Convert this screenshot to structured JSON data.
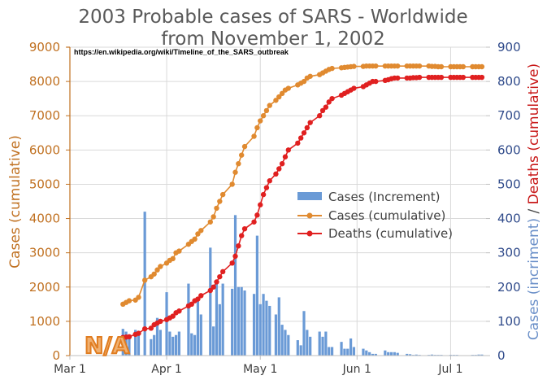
{
  "chart_data": {
    "type": "bar+line",
    "title_line1": "2003 Probable cases of SARS - Worldwide",
    "title_line2": "from November 1, 2002",
    "source": "https://en.wikipedia.org/wiki/Timeline_of_the_SARS_outbreak",
    "ylabel_left": "Cases (cumulative)",
    "ylabel_right_part1": "Cases (incriment)",
    "ylabel_right_sep": " / ",
    "ylabel_right_part2": "Deaths (cumulative)",
    "ylim_left": [
      0,
      9000
    ],
    "ylim_right": [
      0,
      900
    ],
    "left_ticks": [
      "0",
      "1000",
      "2000",
      "3000",
      "4000",
      "5000",
      "6000",
      "7000",
      "8000",
      "9000"
    ],
    "right_ticks": [
      "0",
      "100",
      "200",
      "300",
      "400",
      "500",
      "600",
      "700",
      "800",
      "900"
    ],
    "x_ticks": [
      {
        "label": "Mar 1",
        "day": 0
      },
      {
        "label": "Apr 1",
        "day": 31
      },
      {
        "label": "May 1",
        "day": 61
      },
      {
        "label": "Jun 1",
        "day": 92
      },
      {
        "label": "Jul 1",
        "day": 122
      }
    ],
    "na_label": "N/A",
    "legend": {
      "placement": "center-right",
      "items": [
        {
          "label": "Cases (Increment)",
          "color": "#6a9ad6"
        },
        {
          "label": "Cases (cumulative)",
          "color": "#e08a30"
        },
        {
          "label": "Deaths (cumulative)",
          "color": "#e02020"
        }
      ]
    },
    "colors": {
      "increment": "#6a9ad6",
      "cases": "#e08a30",
      "deaths": "#e02020",
      "grid": "#d9d9d9"
    },
    "days": [
      17,
      18,
      19,
      21,
      22,
      24,
      26,
      27,
      28,
      29,
      31,
      32,
      33,
      34,
      35,
      38,
      39,
      40,
      41,
      42,
      45,
      46,
      47,
      48,
      49,
      52,
      53,
      54,
      55,
      56,
      59,
      60,
      61,
      62,
      63,
      64,
      66,
      67,
      68,
      69,
      70,
      73,
      74,
      75,
      76,
      77,
      80,
      81,
      82,
      83,
      84,
      87,
      88,
      89,
      90,
      91,
      94,
      95,
      96,
      97,
      98,
      101,
      102,
      103,
      104,
      105,
      108,
      109,
      110,
      111,
      112,
      115,
      116,
      117,
      118,
      119,
      122,
      123,
      124,
      125,
      126,
      129,
      130,
      131,
      132
    ],
    "increment": [
      78,
      70,
      50,
      75,
      71,
      420,
      48,
      60,
      110,
      75,
      185,
      70,
      55,
      60,
      70,
      210,
      65,
      60,
      160,
      120,
      315,
      85,
      215,
      150,
      210,
      195,
      410,
      200,
      200,
      190,
      180,
      350,
      150,
      180,
      160,
      145,
      120,
      170,
      90,
      75,
      60,
      45,
      30,
      130,
      75,
      55,
      70,
      55,
      70,
      25,
      25,
      40,
      20,
      20,
      50,
      25,
      20,
      15,
      10,
      5,
      5,
      15,
      10,
      10,
      10,
      8,
      5,
      4,
      2,
      3,
      2,
      2,
      3,
      2,
      2,
      2,
      2,
      2,
      2,
      1,
      1,
      2,
      2,
      3,
      3
    ],
    "cases": [
      1500,
      1550,
      1600,
      1620,
      1700,
      2200,
      2300,
      2380,
      2500,
      2600,
      2700,
      2780,
      2830,
      3000,
      3050,
      3250,
      3330,
      3400,
      3550,
      3650,
      3900,
      4050,
      4300,
      4500,
      4700,
      5000,
      5350,
      5600,
      5850,
      6100,
      6400,
      6650,
      6850,
      7000,
      7150,
      7300,
      7450,
      7550,
      7650,
      7750,
      7800,
      7900,
      7950,
      8000,
      8100,
      8150,
      8200,
      8250,
      8300,
      8350,
      8380,
      8400,
      8410,
      8420,
      8430,
      8440,
      8440,
      8450,
      8450,
      8450,
      8450,
      8450,
      8450,
      8450,
      8450,
      8450,
      8450,
      8450,
      8450,
      8450,
      8450,
      8450,
      8440,
      8440,
      8430,
      8430,
      8430,
      8430,
      8430,
      8430,
      8430,
      8430,
      8430,
      8430,
      8430
    ],
    "deaths": [
      53,
      54,
      55,
      62,
      65,
      78,
      80,
      90,
      95,
      100,
      105,
      110,
      115,
      125,
      130,
      145,
      150,
      160,
      165,
      175,
      190,
      200,
      215,
      230,
      245,
      270,
      290,
      320,
      350,
      370,
      390,
      410,
      440,
      470,
      490,
      510,
      530,
      545,
      560,
      580,
      600,
      620,
      635,
      650,
      665,
      680,
      700,
      715,
      725,
      740,
      750,
      760,
      765,
      770,
      775,
      780,
      785,
      790,
      795,
      800,
      800,
      803,
      805,
      808,
      810,
      810,
      810,
      810,
      811,
      811,
      812,
      812,
      812,
      812,
      812,
      812,
      812,
      812,
      812,
      812,
      812,
      812,
      812,
      812,
      812
    ]
  }
}
